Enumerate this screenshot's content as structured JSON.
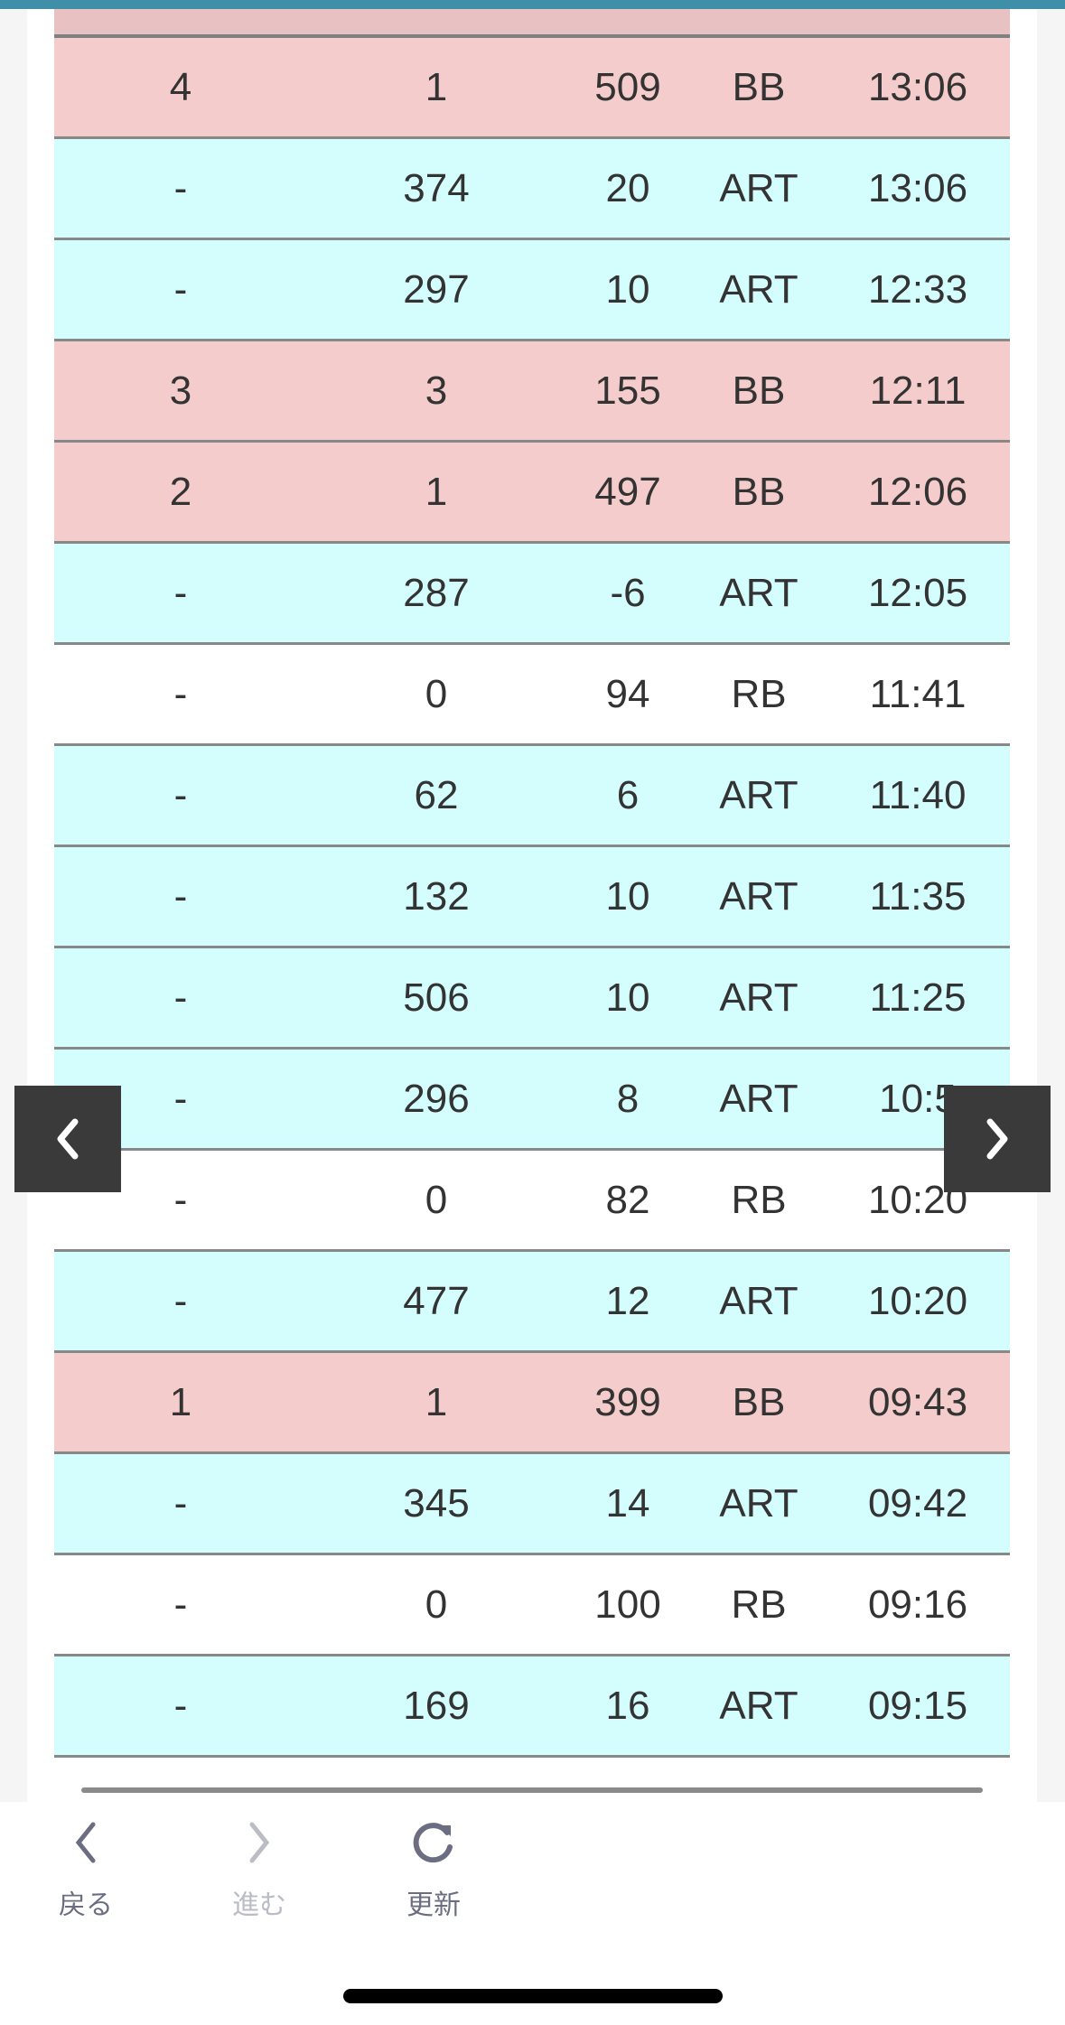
{
  "colors": {
    "bb": "#f5cccc",
    "art": "#d4fdfd",
    "rb": "#ffffff",
    "accent": "#3f8fa8"
  },
  "rows": [
    {
      "type": "bb",
      "cols": [
        "4",
        "1",
        "509",
        "BB",
        "13:06"
      ]
    },
    {
      "type": "art",
      "cols": [
        "-",
        "374",
        "20",
        "ART",
        "13:06"
      ]
    },
    {
      "type": "art",
      "cols": [
        "-",
        "297",
        "10",
        "ART",
        "12:33"
      ]
    },
    {
      "type": "bb",
      "cols": [
        "3",
        "3",
        "155",
        "BB",
        "12:11"
      ]
    },
    {
      "type": "bb",
      "cols": [
        "2",
        "1",
        "497",
        "BB",
        "12:06"
      ]
    },
    {
      "type": "art",
      "cols": [
        "-",
        "287",
        "-6",
        "ART",
        "12:05"
      ]
    },
    {
      "type": "rb",
      "cols": [
        "-",
        "0",
        "94",
        "RB",
        "11:41"
      ]
    },
    {
      "type": "art",
      "cols": [
        "-",
        "62",
        "6",
        "ART",
        "11:40"
      ]
    },
    {
      "type": "art",
      "cols": [
        "-",
        "132",
        "10",
        "ART",
        "11:35"
      ]
    },
    {
      "type": "art",
      "cols": [
        "-",
        "506",
        "10",
        "ART",
        "11:25"
      ]
    },
    {
      "type": "art",
      "cols": [
        "-",
        "296",
        "8",
        "ART",
        "10:5"
      ]
    },
    {
      "type": "rb",
      "cols": [
        "-",
        "0",
        "82",
        "RB",
        "10:20"
      ]
    },
    {
      "type": "art",
      "cols": [
        "-",
        "477",
        "12",
        "ART",
        "10:20"
      ]
    },
    {
      "type": "bb",
      "cols": [
        "1",
        "1",
        "399",
        "BB",
        "09:43"
      ]
    },
    {
      "type": "art",
      "cols": [
        "-",
        "345",
        "14",
        "ART",
        "09:42"
      ]
    },
    {
      "type": "rb",
      "cols": [
        "-",
        "0",
        "100",
        "RB",
        "09:16"
      ]
    },
    {
      "type": "art",
      "cols": [
        "-",
        "169",
        "16",
        "ART",
        "09:15"
      ]
    }
  ],
  "toolbar": {
    "back": "戻る",
    "forward": "進む",
    "reload": "更新"
  }
}
